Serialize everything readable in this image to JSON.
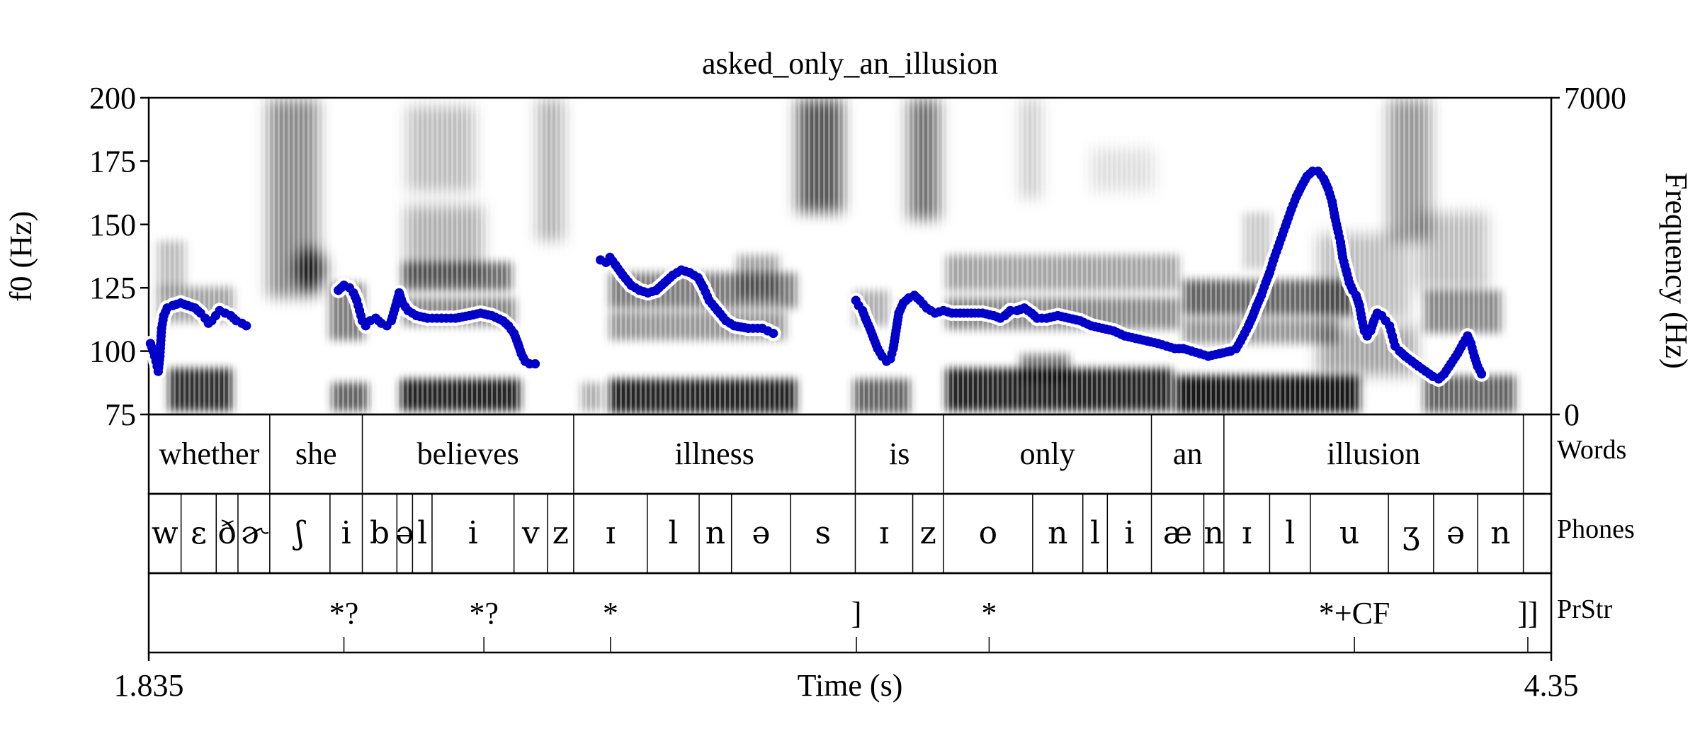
{
  "chart_data": {
    "type": "scatter",
    "title": "asked_only_an_illusion",
    "xlabel": "Time (s)",
    "ylabel_left": "f0 (Hz)",
    "ylabel_right": "Frequency (Hz)",
    "xlim": [
      1.835,
      4.35
    ],
    "ylim": [
      75,
      200
    ],
    "y_ticks": [
      "75",
      "100",
      "125",
      "150",
      "175",
      "200"
    ],
    "y_tick_values": [
      75,
      100,
      125,
      150,
      175,
      200
    ],
    "right_ticks": [
      "0",
      "7000"
    ],
    "right_tick_values": [
      0,
      7000
    ],
    "x_ticks": [
      "1.835",
      "4.35"
    ],
    "series": [
      {
        "color": "#0000c8",
        "segments": [
          [
            [
              1.838,
              103
            ],
            [
              1.843,
              100
            ],
            [
              1.848,
              96
            ],
            [
              1.852,
              92
            ],
            [
              1.855,
              98
            ],
            [
              1.858,
              109
            ],
            [
              1.862,
              114
            ],
            [
              1.868,
              117
            ],
            [
              1.878,
              118
            ],
            [
              1.892,
              119
            ],
            [
              1.905,
              118
            ],
            [
              1.918,
              117
            ],
            [
              1.928,
              115
            ],
            [
              1.936,
              113
            ],
            [
              1.942,
              111
            ],
            [
              1.948,
              112
            ],
            [
              1.955,
              114
            ],
            [
              1.962,
              116
            ],
            [
              1.972,
              115
            ],
            [
              1.982,
              114
            ],
            [
              1.992,
              112
            ],
            [
              2.002,
              111
            ],
            [
              2.01,
              110
            ]
          ],
          [
            [
              2.175,
              124
            ],
            [
              2.185,
              126
            ],
            [
              2.195,
              125
            ],
            [
              2.202,
              123
            ],
            [
              2.208,
              120
            ],
            [
              2.213,
              116
            ],
            [
              2.218,
              112
            ],
            [
              2.224,
              110
            ],
            [
              2.232,
              112
            ],
            [
              2.242,
              113
            ],
            [
              2.252,
              111
            ],
            [
              2.262,
              110
            ],
            [
              2.27,
              112
            ],
            [
              2.278,
              118
            ],
            [
              2.284,
              123
            ],
            [
              2.29,
              119
            ],
            [
              2.3,
              116
            ],
            [
              2.315,
              114
            ],
            [
              2.335,
              113
            ],
            [
              2.36,
              113
            ],
            [
              2.385,
              113
            ],
            [
              2.41,
              114
            ],
            [
              2.43,
              115
            ],
            [
              2.45,
              114
            ],
            [
              2.47,
              112
            ],
            [
              2.48,
              110
            ],
            [
              2.49,
              107
            ],
            [
              2.497,
              103
            ],
            [
              2.503,
              99
            ],
            [
              2.51,
              96
            ],
            [
              2.518,
              95
            ],
            [
              2.528,
              95
            ]
          ],
          [
            [
              2.645,
              136
            ],
            [
              2.655,
              135
            ],
            [
              2.662,
              137
            ],
            [
              2.672,
              134
            ],
            [
              2.685,
              130
            ],
            [
              2.7,
              126
            ],
            [
              2.715,
              124
            ],
            [
              2.73,
              123
            ],
            [
              2.745,
              124
            ],
            [
              2.76,
              127
            ],
            [
              2.775,
              130
            ],
            [
              2.79,
              132
            ],
            [
              2.805,
              131
            ],
            [
              2.82,
              129
            ],
            [
              2.83,
              125
            ],
            [
              2.84,
              120
            ],
            [
              2.855,
              116
            ],
            [
              2.87,
              112
            ],
            [
              2.885,
              110
            ],
            [
              2.91,
              109
            ],
            [
              2.935,
              109
            ],
            [
              2.945,
              108
            ],
            [
              2.955,
              107
            ]
          ],
          [
            [
              3.103,
              120
            ],
            [
              3.108,
              118
            ],
            [
              3.115,
              116
            ],
            [
              3.12,
              113
            ],
            [
              3.128,
              109
            ],
            [
              3.135,
              105
            ],
            [
              3.142,
              101
            ],
            [
              3.15,
              98
            ],
            [
              3.158,
              96
            ],
            [
              3.165,
              97
            ],
            [
              3.17,
              101
            ],
            [
              3.175,
              108
            ],
            [
              3.18,
              115
            ],
            [
              3.188,
              119
            ],
            [
              3.198,
              121
            ],
            [
              3.208,
              122
            ],
            [
              3.218,
              120
            ],
            [
              3.23,
              117
            ],
            [
              3.245,
              115
            ],
            [
              3.26,
              116
            ],
            [
              3.275,
              115
            ],
            [
              3.29,
              115
            ],
            [
              3.31,
              115
            ],
            [
              3.33,
              115
            ],
            [
              3.35,
              114
            ],
            [
              3.362,
              113
            ],
            [
              3.37,
              114
            ],
            [
              3.38,
              116
            ],
            [
              3.392,
              116
            ],
            [
              3.405,
              117
            ],
            [
              3.418,
              115
            ],
            [
              3.428,
              113
            ],
            [
              3.445,
              113
            ],
            [
              3.465,
              114
            ],
            [
              3.485,
              113
            ],
            [
              3.505,
              112
            ],
            [
              3.525,
              110
            ],
            [
              3.545,
              109
            ],
            [
              3.565,
              108
            ],
            [
              3.585,
              106
            ],
            [
              3.605,
              105
            ],
            [
              3.625,
              104
            ],
            [
              3.645,
              103
            ],
            [
              3.66,
              102
            ],
            [
              3.675,
              101
            ],
            [
              3.69,
              101
            ],
            [
              3.705,
              100
            ],
            [
              3.72,
              99
            ],
            [
              3.735,
              98
            ],
            [
              3.755,
              99
            ],
            [
              3.775,
              100
            ],
            [
              3.785,
              101
            ],
            [
              3.793,
              104
            ],
            [
              3.8,
              107
            ],
            [
              3.807,
              110
            ],
            [
              3.815,
              114
            ],
            [
              3.822,
              118
            ],
            [
              3.83,
              122
            ],
            [
              3.838,
              127
            ],
            [
              3.845,
              131
            ],
            [
              3.852,
              136
            ],
            [
              3.86,
              141
            ],
            [
              3.868,
              146
            ],
            [
              3.876,
              151
            ],
            [
              3.884,
              156
            ],
            [
              3.893,
              161
            ],
            [
              3.902,
              165
            ],
            [
              3.912,
              169
            ],
            [
              3.922,
              171
            ],
            [
              3.932,
              171
            ],
            [
              3.942,
              168
            ],
            [
              3.95,
              164
            ],
            [
              3.957,
              159
            ],
            [
              3.962,
              153
            ],
            [
              3.968,
              147
            ],
            [
              3.972,
              143
            ],
            [
              3.976,
              137
            ],
            [
              3.982,
              132
            ],
            [
              3.988,
              127
            ],
            [
              3.994,
              124
            ],
            [
              4.0,
              122
            ],
            [
              4.006,
              118
            ],
            [
              4.01,
              113
            ],
            [
              4.015,
              108
            ],
            [
              4.02,
              106
            ],
            [
              4.026,
              108
            ],
            [
              4.032,
              112
            ],
            [
              4.038,
              115
            ],
            [
              4.046,
              114
            ],
            [
              4.053,
              112
            ],
            [
              4.06,
              110
            ],
            [
              4.065,
              106
            ],
            [
              4.07,
              102
            ],
            [
              4.078,
              100
            ],
            [
              4.088,
              98
            ],
            [
              4.1,
              96
            ],
            [
              4.112,
              94
            ],
            [
              4.125,
              92
            ],
            [
              4.138,
              90
            ],
            [
              4.148,
              89
            ],
            [
              4.158,
              91
            ],
            [
              4.17,
              95
            ],
            [
              4.182,
              99
            ],
            [
              4.192,
              103
            ],
            [
              4.2,
              106
            ],
            [
              4.206,
              103
            ],
            [
              4.212,
              98
            ],
            [
              4.218,
              94
            ],
            [
              4.225,
              91
            ]
          ]
        ]
      }
    ]
  },
  "tiers": [
    {
      "name": "Words",
      "intervals": [
        {
          "start": 1.835,
          "end": 2.052,
          "text": "whether"
        },
        {
          "start": 2.052,
          "end": 2.218,
          "text": "she"
        },
        {
          "start": 2.218,
          "end": 2.597,
          "text": "believes"
        },
        {
          "start": 2.597,
          "end": 3.102,
          "text": "illness"
        },
        {
          "start": 3.102,
          "end": 3.26,
          "text": "is"
        },
        {
          "start": 3.26,
          "end": 3.633,
          "text": "only"
        },
        {
          "start": 3.633,
          "end": 3.763,
          "text": "an"
        },
        {
          "start": 3.763,
          "end": 4.3,
          "text": "illusion"
        },
        {
          "start": 4.3,
          "end": 4.35,
          "text": ""
        }
      ]
    },
    {
      "name": "Phones",
      "intervals": [
        {
          "start": 1.835,
          "end": 1.893,
          "text": "w"
        },
        {
          "start": 1.893,
          "end": 1.956,
          "text": "ɛ"
        },
        {
          "start": 1.956,
          "end": 1.995,
          "text": "ð"
        },
        {
          "start": 1.995,
          "end": 2.052,
          "text": "ɚ"
        },
        {
          "start": 2.052,
          "end": 2.16,
          "text": "ʃ"
        },
        {
          "start": 2.16,
          "end": 2.218,
          "text": "i"
        },
        {
          "start": 2.218,
          "end": 2.28,
          "text": "b"
        },
        {
          "start": 2.28,
          "end": 2.308,
          "text": "ə"
        },
        {
          "start": 2.308,
          "end": 2.343,
          "text": "l"
        },
        {
          "start": 2.343,
          "end": 2.49,
          "text": "i"
        },
        {
          "start": 2.49,
          "end": 2.55,
          "text": "v"
        },
        {
          "start": 2.55,
          "end": 2.597,
          "text": "z"
        },
        {
          "start": 2.597,
          "end": 2.729,
          "text": "ɪ"
        },
        {
          "start": 2.729,
          "end": 2.822,
          "text": "l"
        },
        {
          "start": 2.822,
          "end": 2.88,
          "text": "n"
        },
        {
          "start": 2.88,
          "end": 2.986,
          "text": "ə"
        },
        {
          "start": 2.986,
          "end": 3.102,
          "text": "s"
        },
        {
          "start": 3.102,
          "end": 3.205,
          "text": "ɪ"
        },
        {
          "start": 3.205,
          "end": 3.26,
          "text": "z"
        },
        {
          "start": 3.26,
          "end": 3.42,
          "text": "o"
        },
        {
          "start": 3.42,
          "end": 3.51,
          "text": "n"
        },
        {
          "start": 3.51,
          "end": 3.554,
          "text": "l"
        },
        {
          "start": 3.554,
          "end": 3.633,
          "text": "i"
        },
        {
          "start": 3.633,
          "end": 3.727,
          "text": "æ"
        },
        {
          "start": 3.727,
          "end": 3.763,
          "text": "n"
        },
        {
          "start": 3.763,
          "end": 3.845,
          "text": "ɪ"
        },
        {
          "start": 3.845,
          "end": 3.918,
          "text": "l"
        },
        {
          "start": 3.918,
          "end": 4.058,
          "text": "u"
        },
        {
          "start": 4.058,
          "end": 4.139,
          "text": "ʒ"
        },
        {
          "start": 4.139,
          "end": 4.218,
          "text": "ə"
        },
        {
          "start": 4.218,
          "end": 4.3,
          "text": "n"
        },
        {
          "start": 4.3,
          "end": 4.35,
          "text": ""
        }
      ]
    },
    {
      "name": "PrStr",
      "points": [
        {
          "time": 2.185,
          "text": "*?"
        },
        {
          "time": 2.436,
          "text": "*?"
        },
        {
          "time": 2.663,
          "text": "*"
        },
        {
          "time": 3.104,
          "text": "]"
        },
        {
          "time": 3.342,
          "text": "*"
        },
        {
          "time": 3.997,
          "text": "*+CF"
        },
        {
          "time": 4.308,
          "text": "]]"
        }
      ]
    }
  ]
}
